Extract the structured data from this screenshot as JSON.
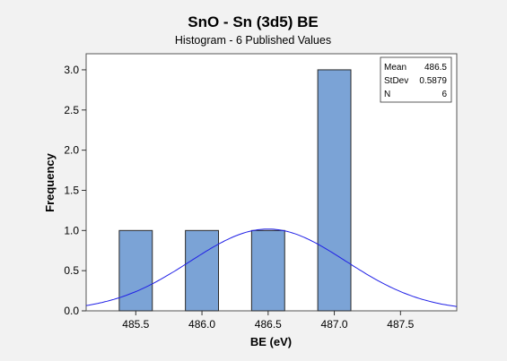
{
  "chart_data": {
    "type": "bar",
    "title": "SnO - Sn (3d5) BE",
    "subtitle": "Histogram - 6 Published Values",
    "xlabel": "BE (eV)",
    "ylabel": "Frequency",
    "bin_width": 0.25,
    "bins": [
      {
        "center": 485.5,
        "count": 1
      },
      {
        "center": 486.0,
        "count": 1
      },
      {
        "center": 486.5,
        "count": 1
      },
      {
        "center": 487.0,
        "count": 3
      }
    ],
    "xlim": [
      485.125,
      487.925
    ],
    "ylim": [
      0,
      3.2
    ],
    "x_ticks": [
      485.5,
      486.0,
      486.5,
      487.0,
      487.5
    ],
    "x_tick_labels": [
      "485.5",
      "486.0",
      "486.5",
      "487.0",
      "487.5"
    ],
    "y_ticks": [
      0,
      0.5,
      1.0,
      1.5,
      2.0,
      2.5,
      3.0
    ],
    "y_tick_labels": [
      "0.0",
      "0.5",
      "1.0",
      "1.5",
      "2.0",
      "2.5",
      "3.0"
    ],
    "normal_fit": {
      "mean": 486.5,
      "stdev": 0.5879,
      "n": 6,
      "scale": 1.5
    },
    "stats": [
      {
        "label": "Mean",
        "value": "486.5"
      },
      {
        "label": "StDev",
        "value": "0.5879"
      },
      {
        "label": "N",
        "value": "6"
      }
    ],
    "legend_position": "top-right",
    "grid": false,
    "colors": {
      "bar_fill": "#7ba3d6",
      "bar_stroke": "#2a2a2a",
      "fit_line": "#2020e6",
      "plot_bg": "#ffffff",
      "page_bg": "#f2f2f2"
    }
  }
}
